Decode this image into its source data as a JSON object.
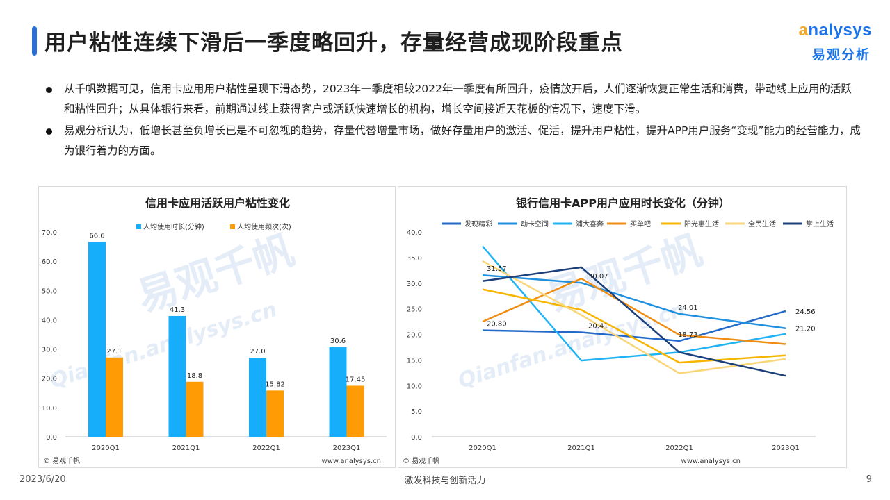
{
  "page": {
    "title": "用户粘性连续下滑后一季度略回升，存量经营成现阶段重点",
    "logo_word_a": "a",
    "logo_word_rest": "nalysys",
    "logo_cn": "易观分析",
    "bullets": [
      "从千帆数据可见，信用卡应用用户粘性呈现下滑态势，2023年一季度相较2022年一季度有所回升，疫情放开后，人们逐渐恢复正常生活和消费，带动线上应用的活跃和粘性回升；从具体银行来看，前期通过线上获得客户或活跃快速增长的机构，增长空间接近天花板的情况下，速度下滑。",
      "易观分析认为，低增长甚至负增长已是不可忽视的趋势，存量代替增量市场，做好存量用户的激活、促活，提升用户粘性，提升APP用户服务“变现”能力的经营能力，成为银行着力的方面。"
    ],
    "footer_date": "2023/6/20",
    "footer_slogan": "激发科技与创新活力",
    "footer_page": "9"
  },
  "chart_data": [
    {
      "type": "bar",
      "title": "信用卡应用活跃用户粘性变化",
      "categories": [
        "2020Q1",
        "2021Q1",
        "2022Q1",
        "2023Q1"
      ],
      "series": [
        {
          "name": "人均使用时长(分钟)",
          "values": [
            66.6,
            41.3,
            27.0,
            30.6
          ],
          "labels": [
            "66.6",
            "41.3",
            "27.0",
            "30.6"
          ],
          "color": "#16aefb"
        },
        {
          "name": "人均使用频次(次)",
          "values": [
            27.1,
            18.8,
            15.82,
            17.45
          ],
          "labels": [
            "27.1",
            "18.8",
            "15.82",
            "17.45"
          ],
          "color": "#ff9b05"
        }
      ],
      "ylim": [
        0,
        70
      ],
      "yticks": [
        "0.0",
        "10.0",
        "20.0",
        "30.0",
        "40.0",
        "50.0",
        "60.0",
        "70.0"
      ],
      "legend_position": "top",
      "source": "© 易观千帆",
      "website": "www.analysys.cn",
      "watermark": "易观千帆",
      "watermark_url": "Qianfan.analysys.cn"
    },
    {
      "type": "line",
      "title": "银行信用卡APP用户应用时长变化（分钟）",
      "categories": [
        "2020Q1",
        "2021Q1",
        "2022Q1",
        "2023Q1"
      ],
      "series": [
        {
          "name": "发现精彩",
          "values": [
            20.8,
            20.41,
            18.73,
            24.56
          ],
          "color": "#2369c8"
        },
        {
          "name": "动卡空间",
          "values": [
            31.57,
            30.07,
            24.01,
            21.2
          ],
          "color": "#1f8fe0"
        },
        {
          "name": "浦大喜奔",
          "values": [
            37.2,
            14.9,
            16.5,
            20.1
          ],
          "color": "#1fb3f5"
        },
        {
          "name": "买单吧",
          "values": [
            22.5,
            30.9,
            19.9,
            18.1
          ],
          "color": "#f08c12"
        },
        {
          "name": "阳光惠生活",
          "values": [
            28.8,
            24.8,
            14.5,
            15.9
          ],
          "color": "#f7b500"
        },
        {
          "name": "全民生活",
          "values": [
            34.3,
            23.8,
            12.4,
            15.2
          ],
          "color": "#fad67a"
        },
        {
          "name": "掌上生活",
          "values": [
            30.4,
            33.1,
            16.5,
            11.9
          ],
          "color": "#1b3f7a"
        }
      ],
      "data_labels": [
        {
          "text": "31.57",
          "series": 1,
          "index": 0
        },
        {
          "text": "20.80",
          "series": 0,
          "index": 0
        },
        {
          "text": "30.07",
          "series": 1,
          "index": 1
        },
        {
          "text": "20.41",
          "series": 0,
          "index": 1
        },
        {
          "text": "24.01",
          "series": 1,
          "index": 2
        },
        {
          "text": "18.73",
          "series": 0,
          "index": 2
        },
        {
          "text": "24.56",
          "series": 0,
          "index": 3
        },
        {
          "text": "21.20",
          "series": 1,
          "index": 3
        }
      ],
      "ylim": [
        0,
        40
      ],
      "yticks": [
        "0.0",
        "5.0",
        "10.0",
        "15.0",
        "20.0",
        "25.0",
        "30.0",
        "35.0",
        "40.0"
      ],
      "legend_position": "top",
      "source": "© 易观千帆",
      "website": "www.analysys.cn",
      "watermark": "易观千帆",
      "watermark_url": "Qianfan.analysys.cn"
    }
  ]
}
